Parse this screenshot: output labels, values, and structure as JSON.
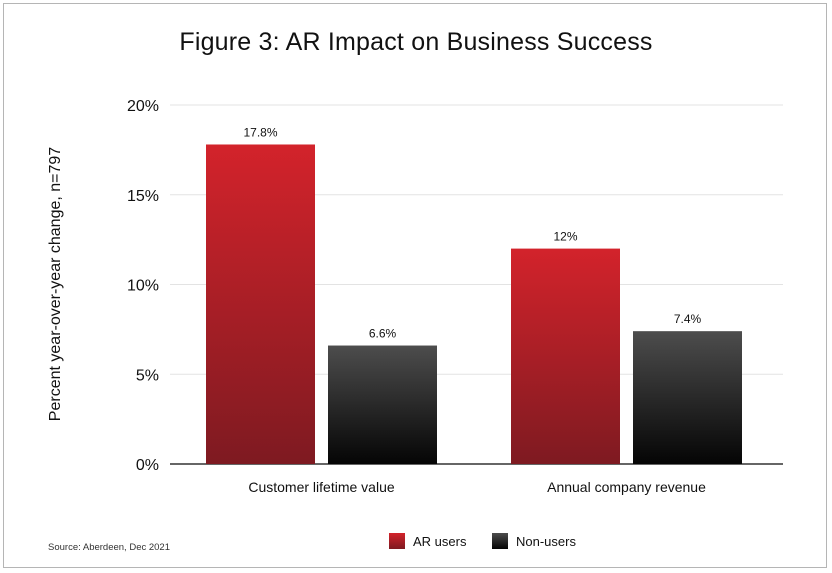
{
  "chart_data": {
    "type": "bar",
    "title": "Figure 3: AR Impact on Business Success",
    "ylabel": "Percent year-over-year change, n=797",
    "xlabel": "",
    "categories": [
      "Customer lifetime value",
      "Annual company revenue"
    ],
    "series": [
      {
        "name": "AR users",
        "values": [
          17.8,
          12
        ],
        "labels": [
          "17.8%",
          "12%"
        ],
        "color_top": "#d3232b",
        "color_bottom": "#7e1a21"
      },
      {
        "name": "Non-users",
        "values": [
          6.6,
          7.4
        ],
        "labels": [
          "6.6%",
          "7.4%"
        ],
        "color_top": "#4d4d4d",
        "color_bottom": "#050505"
      }
    ],
    "ylim": [
      0,
      20
    ],
    "yticks": [
      0,
      5,
      10,
      15,
      20
    ],
    "ytick_labels": [
      "0%",
      "5%",
      "10%",
      "15%",
      "20%"
    ],
    "grid": true,
    "legend": "bottom-center"
  },
  "source": "Source: Aberdeen, Dec 2021"
}
